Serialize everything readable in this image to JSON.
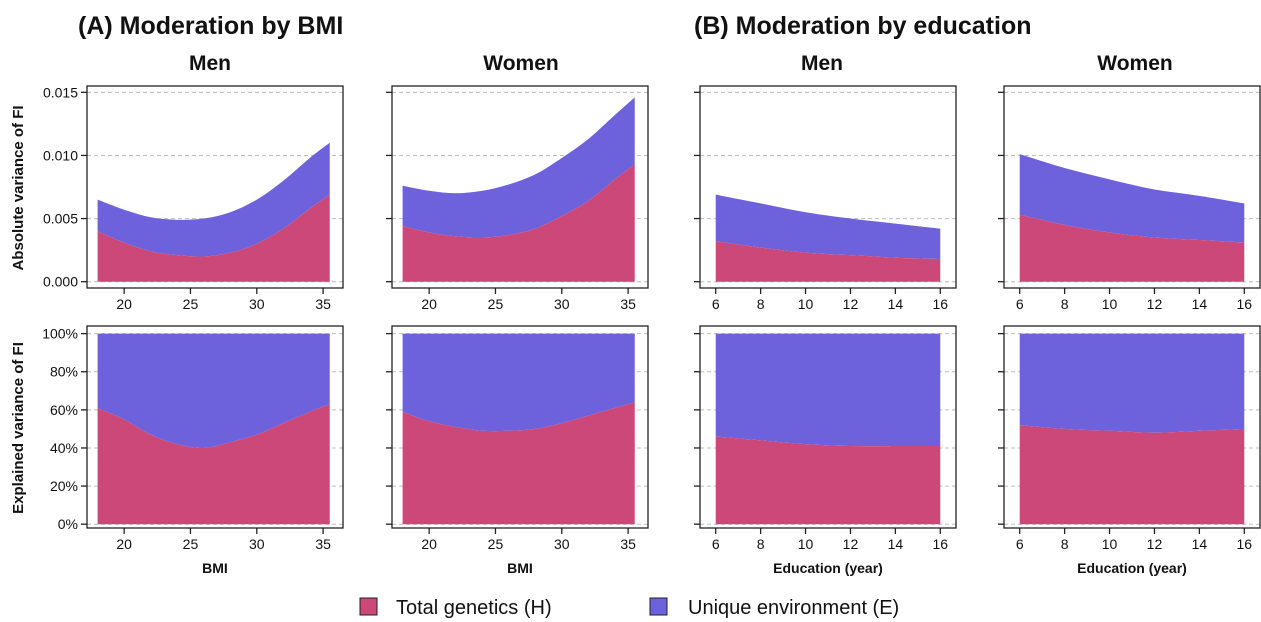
{
  "colors": {
    "H": "#cc4878",
    "E": "#6e62dc"
  },
  "section_titles": [
    "(A) Moderation by BMI",
    "(B) Moderation by education"
  ],
  "column_titles": [
    "Men",
    "Women",
    "Men",
    "Women"
  ],
  "row_ylabels": [
    "Absolute variance of FI",
    "Explained variance of FI"
  ],
  "legend": [
    {
      "key": "H",
      "label": "Total genetics (H)"
    },
    {
      "key": "E",
      "label": "Unique environment (E)"
    }
  ],
  "chart_data": [
    {
      "type": "area",
      "stacked": true,
      "row": 0,
      "col": 0,
      "group": "BMI",
      "sex": "Men",
      "xlabel": "",
      "ylabel": "Absolute variance of FI",
      "xlim": [
        17.2,
        36.5
      ],
      "ylim": [
        -0.0005,
        0.0155
      ],
      "xticks": [
        20,
        25,
        30,
        35
      ],
      "xtick_labels": [
        "20",
        "25",
        "30",
        "35"
      ],
      "yticks": [
        0,
        0.005,
        0.01,
        0.015
      ],
      "ytick_labels": [
        "0.000",
        "0.005",
        "0.010",
        "0.015"
      ],
      "x": [
        18,
        20,
        22,
        24,
        26,
        28,
        30,
        32,
        34,
        35.5
      ],
      "series": [
        {
          "name": "Total genetics (H)",
          "key": "H",
          "values": [
            0.004,
            0.0031,
            0.0024,
            0.0021,
            0.002,
            0.0023,
            0.003,
            0.0042,
            0.0058,
            0.0069
          ]
        },
        {
          "name": "Unique environment (E)",
          "key": "E",
          "values": [
            0.0025,
            0.0026,
            0.0027,
            0.0028,
            0.003,
            0.0032,
            0.0035,
            0.0038,
            0.004,
            0.0041
          ]
        }
      ]
    },
    {
      "type": "area",
      "stacked": true,
      "row": 0,
      "col": 1,
      "group": "BMI",
      "sex": "Women",
      "xlabel": "",
      "ylabel": "",
      "xlim": [
        17.2,
        36.5
      ],
      "ylim": [
        -0.0005,
        0.0155
      ],
      "xticks": [
        20,
        25,
        30,
        35
      ],
      "xtick_labels": [
        "20",
        "25",
        "30",
        "35"
      ],
      "yticks": [
        0,
        0.005,
        0.01,
        0.015
      ],
      "ytick_labels": [
        "",
        "",
        "",
        ""
      ],
      "x": [
        18,
        20,
        22,
        24,
        26,
        28,
        30,
        32,
        34,
        35.5
      ],
      "series": [
        {
          "name": "Total genetics (H)",
          "key": "H",
          "values": [
            0.0044,
            0.0039,
            0.0036,
            0.0035,
            0.0037,
            0.0042,
            0.0052,
            0.0064,
            0.0081,
            0.0093
          ]
        },
        {
          "name": "Unique environment (E)",
          "key": "E",
          "values": [
            0.0032,
            0.0033,
            0.0034,
            0.0037,
            0.004,
            0.0043,
            0.0046,
            0.0049,
            0.0051,
            0.0053
          ]
        }
      ]
    },
    {
      "type": "area",
      "stacked": true,
      "row": 0,
      "col": 2,
      "group": "Education",
      "sex": "Men",
      "xlabel": "",
      "ylabel": "",
      "xlim": [
        5.3,
        16.7
      ],
      "ylim": [
        -0.0005,
        0.0155
      ],
      "xticks": [
        6,
        8,
        10,
        12,
        14,
        16
      ],
      "xtick_labels": [
        "6",
        "8",
        "10",
        "12",
        "14",
        "16"
      ],
      "yticks": [
        0,
        0.005,
        0.01,
        0.015
      ],
      "ytick_labels": [
        "",
        "",
        "",
        ""
      ],
      "x": [
        6,
        8,
        10,
        12,
        14,
        16
      ],
      "series": [
        {
          "name": "Total genetics (H)",
          "key": "H",
          "values": [
            0.0032,
            0.0027,
            0.0023,
            0.0021,
            0.0019,
            0.0018
          ]
        },
        {
          "name": "Unique environment (E)",
          "key": "E",
          "values": [
            0.0037,
            0.0035,
            0.0032,
            0.0029,
            0.0027,
            0.0024
          ]
        }
      ]
    },
    {
      "type": "area",
      "stacked": true,
      "row": 0,
      "col": 3,
      "group": "Education",
      "sex": "Women",
      "xlabel": "",
      "ylabel": "",
      "xlim": [
        5.3,
        16.7
      ],
      "ylim": [
        -0.0005,
        0.0155
      ],
      "xticks": [
        6,
        8,
        10,
        12,
        14,
        16
      ],
      "xtick_labels": [
        "6",
        "8",
        "10",
        "12",
        "14",
        "16"
      ],
      "yticks": [
        0,
        0.005,
        0.01,
        0.015
      ],
      "ytick_labels": [
        "",
        "",
        "",
        ""
      ],
      "x": [
        6,
        8,
        10,
        12,
        14,
        16
      ],
      "series": [
        {
          "name": "Total genetics (H)",
          "key": "H",
          "values": [
            0.0053,
            0.0045,
            0.0039,
            0.0035,
            0.0033,
            0.0031
          ]
        },
        {
          "name": "Unique environment (E)",
          "key": "E",
          "values": [
            0.0048,
            0.0045,
            0.0042,
            0.0038,
            0.0035,
            0.0031
          ]
        }
      ]
    },
    {
      "type": "area",
      "stacked": true,
      "row": 1,
      "col": 0,
      "group": "BMI",
      "sex": "Men",
      "xlabel": "BMI",
      "ylabel": "Explained variance of FI",
      "xlim": [
        17.2,
        36.5
      ],
      "ylim": [
        -2,
        104
      ],
      "xticks": [
        20,
        25,
        30,
        35
      ],
      "xtick_labels": [
        "20",
        "25",
        "30",
        "35"
      ],
      "yticks": [
        0,
        20,
        40,
        60,
        80,
        100
      ],
      "ytick_labels": [
        "0%",
        "20%",
        "40%",
        "60%",
        "80%",
        "100%"
      ],
      "x": [
        18,
        20,
        22,
        24,
        26,
        28,
        30,
        32,
        34,
        35.5
      ],
      "series": [
        {
          "name": "Total genetics (H)",
          "key": "H",
          "values": [
            61,
            55,
            47,
            42,
            40,
            43,
            47,
            53,
            59,
            63
          ]
        },
        {
          "name": "Unique environment (E)",
          "key": "E",
          "values": [
            39,
            45,
            53,
            58,
            60,
            57,
            53,
            47,
            41,
            37
          ]
        }
      ]
    },
    {
      "type": "area",
      "stacked": true,
      "row": 1,
      "col": 1,
      "group": "BMI",
      "sex": "Women",
      "xlabel": "BMI",
      "ylabel": "",
      "xlim": [
        17.2,
        36.5
      ],
      "ylim": [
        -2,
        104
      ],
      "xticks": [
        20,
        25,
        30,
        35
      ],
      "xtick_labels": [
        "20",
        "25",
        "30",
        "35"
      ],
      "yticks": [
        0,
        20,
        40,
        60,
        80,
        100
      ],
      "ytick_labels": [
        "",
        "",
        "",
        "",
        "",
        ""
      ],
      "x": [
        18,
        20,
        22,
        24,
        26,
        28,
        30,
        32,
        34,
        35.5
      ],
      "series": [
        {
          "name": "Total genetics (H)",
          "key": "H",
          "values": [
            59,
            54,
            51,
            49,
            49,
            50,
            53,
            57,
            61,
            64
          ]
        },
        {
          "name": "Unique environment (E)",
          "key": "E",
          "values": [
            41,
            46,
            49,
            51,
            51,
            50,
            47,
            43,
            39,
            36
          ]
        }
      ]
    },
    {
      "type": "area",
      "stacked": true,
      "row": 1,
      "col": 2,
      "group": "Education",
      "sex": "Men",
      "xlabel": "Education (year)",
      "ylabel": "",
      "xlim": [
        5.3,
        16.7
      ],
      "ylim": [
        -2,
        104
      ],
      "xticks": [
        6,
        8,
        10,
        12,
        14,
        16
      ],
      "xtick_labels": [
        "6",
        "8",
        "10",
        "12",
        "14",
        "16"
      ],
      "yticks": [
        0,
        20,
        40,
        60,
        80,
        100
      ],
      "ytick_labels": [
        "",
        "",
        "",
        "",
        "",
        ""
      ],
      "x": [
        6,
        8,
        10,
        12,
        14,
        16
      ],
      "series": [
        {
          "name": "Total genetics (H)",
          "key": "H",
          "values": [
            46,
            44,
            42,
            41,
            41,
            41
          ]
        },
        {
          "name": "Unique environment (E)",
          "key": "E",
          "values": [
            54,
            56,
            58,
            59,
            59,
            59
          ]
        }
      ]
    },
    {
      "type": "area",
      "stacked": true,
      "row": 1,
      "col": 3,
      "group": "Education",
      "sex": "Women",
      "xlabel": "Education (year)",
      "ylabel": "",
      "xlim": [
        5.3,
        16.7
      ],
      "ylim": [
        -2,
        104
      ],
      "xticks": [
        6,
        8,
        10,
        12,
        14,
        16
      ],
      "xtick_labels": [
        "6",
        "8",
        "10",
        "12",
        "14",
        "16"
      ],
      "yticks": [
        0,
        20,
        40,
        60,
        80,
        100
      ],
      "ytick_labels": [
        "",
        "",
        "",
        "",
        "",
        ""
      ],
      "x": [
        6,
        8,
        10,
        12,
        14,
        16
      ],
      "series": [
        {
          "name": "Total genetics (H)",
          "key": "H",
          "values": [
            52,
            50,
            49,
            48,
            49,
            50
          ]
        },
        {
          "name": "Unique environment (E)",
          "key": "E",
          "values": [
            48,
            50,
            51,
            52,
            51,
            50
          ]
        }
      ]
    }
  ]
}
